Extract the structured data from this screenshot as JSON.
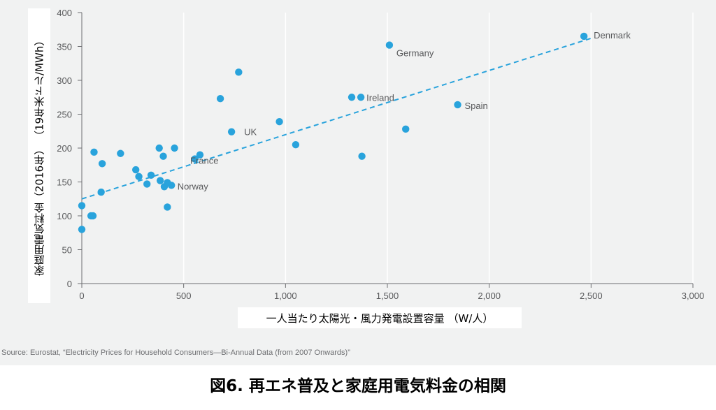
{
  "chart_data": {
    "type": "scatter",
    "xlabel": "一人当たり太陽光・風力発電設置容量 （W/人）",
    "ylabel": "家庭用電気料金（2016年） （19年米ドル/MWh）",
    "xlim": [
      0,
      3000
    ],
    "ylim": [
      0,
      400
    ],
    "x_ticks": [
      0,
      500,
      1000,
      1500,
      2000,
      2500,
      3000
    ],
    "x_tick_labels": [
      "0",
      "500",
      "1,000",
      "1,500",
      "2,000",
      "2,500",
      "3,000"
    ],
    "y_ticks": [
      0,
      50,
      100,
      150,
      200,
      250,
      300,
      350,
      400
    ],
    "y_tick_labels": [
      "0",
      "50",
      "100",
      "150",
      "200",
      "250",
      "300",
      "350",
      "400"
    ],
    "grid": "vertical",
    "points": [
      {
        "x": 0,
        "y": 115
      },
      {
        "x": 0,
        "y": 80
      },
      {
        "x": 45,
        "y": 100
      },
      {
        "x": 55,
        "y": 100
      },
      {
        "x": 60,
        "y": 194
      },
      {
        "x": 95,
        "y": 135
      },
      {
        "x": 100,
        "y": 177
      },
      {
        "x": 190,
        "y": 192
      },
      {
        "x": 265,
        "y": 168
      },
      {
        "x": 280,
        "y": 158
      },
      {
        "x": 320,
        "y": 147
      },
      {
        "x": 340,
        "y": 160
      },
      {
        "x": 380,
        "y": 200
      },
      {
        "x": 385,
        "y": 152
      },
      {
        "x": 400,
        "y": 188
      },
      {
        "x": 405,
        "y": 143
      },
      {
        "x": 420,
        "y": 149
      },
      {
        "x": 420,
        "y": 113
      },
      {
        "x": 440,
        "y": 145
      },
      {
        "x": 455,
        "y": 200
      },
      {
        "x": 555,
        "y": 184
      },
      {
        "x": 580,
        "y": 190
      },
      {
        "x": 680,
        "y": 273
      },
      {
        "x": 735,
        "y": 224
      },
      {
        "x": 770,
        "y": 312
      },
      {
        "x": 970,
        "y": 239
      },
      {
        "x": 1050,
        "y": 205
      },
      {
        "x": 1325,
        "y": 275
      },
      {
        "x": 1370,
        "y": 275
      },
      {
        "x": 1375,
        "y": 188
      },
      {
        "x": 1510,
        "y": 352
      },
      {
        "x": 1590,
        "y": 228
      },
      {
        "x": 1845,
        "y": 264
      },
      {
        "x": 2465,
        "y": 365
      }
    ],
    "labels": [
      {
        "text": "Denmark",
        "x": 2465,
        "y": 365
      },
      {
        "text": "Germany",
        "x": 1510,
        "y": 352
      },
      {
        "text": "Ireland",
        "x": 1370,
        "y": 275
      },
      {
        "text": "Spain",
        "x": 1845,
        "y": 264
      },
      {
        "text": "UK",
        "x": 735,
        "y": 224
      },
      {
        "text": "France",
        "x": 580,
        "y": 190
      },
      {
        "text": "Norway",
        "x": 555,
        "y": 184
      }
    ],
    "trendline": {
      "x": [
        0,
        2500
      ],
      "y": [
        125,
        362
      ]
    },
    "colors": {
      "points": "#29a3dc",
      "trend": "#29a3dc",
      "grid": "#ffffff",
      "axis": "#6d6e71",
      "text": "#58595b"
    }
  },
  "source": "Source: Eurostat, “Electricity Prices for Household Consumers—Bi-Annual Data (from 2007 Onwards)”",
  "caption": "図6. 再エネ普及と家庭用電気料金の相関"
}
